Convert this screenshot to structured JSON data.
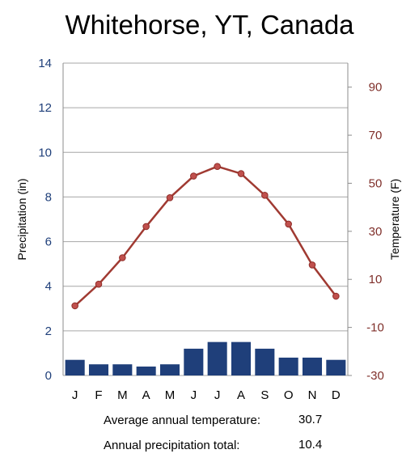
{
  "chart_data": {
    "type": "bar+line",
    "title": "Whitehorse, YT, Canada",
    "categories": [
      "J",
      "F",
      "M",
      "A",
      "M",
      "J",
      "J",
      "A",
      "S",
      "O",
      "N",
      "D"
    ],
    "series": [
      {
        "name": "Precipitation",
        "type": "bar",
        "axis": "left",
        "color": "#1f3f7a",
        "values": [
          0.7,
          0.5,
          0.5,
          0.4,
          0.5,
          1.2,
          1.5,
          1.5,
          1.2,
          0.8,
          0.8,
          0.7
        ]
      },
      {
        "name": "Temperature",
        "type": "line",
        "axis": "right",
        "color": "#a03a32",
        "marker_fill": "#c0504d",
        "values": [
          -1,
          8,
          19,
          32,
          44,
          53,
          57,
          54,
          45,
          33,
          16,
          3
        ]
      }
    ],
    "y_left": {
      "label": "Precipitation (in)",
      "ylim": [
        0,
        14
      ],
      "ticks": [
        "0",
        "2",
        "4",
        "6",
        "8",
        "10",
        "12",
        "14"
      ],
      "tick_color": "#1f3f7a"
    },
    "y_right": {
      "label": "Temperature (F)",
      "ylim": [
        -30,
        100
      ],
      "ticks": [
        "-30",
        "-10",
        "10",
        "30",
        "50",
        "70",
        "90"
      ],
      "tick_color": "#7f2f2a"
    },
    "grid": true,
    "legend": "none"
  },
  "stats": {
    "avg_temp_label": "Average annual temperature:",
    "avg_temp_value": "30.7",
    "precip_label": "Annual precipitation total:",
    "precip_value": "10.4"
  }
}
